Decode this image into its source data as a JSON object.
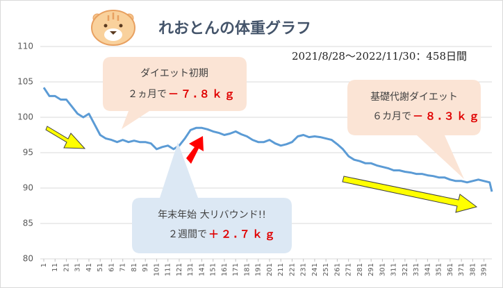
{
  "chart_data": {
    "type": "line",
    "title": "れおとんの体重グラフ",
    "subtitle": "2021/8/28～2022/11/30：458日間",
    "x": [
      1,
      6,
      11,
      16,
      21,
      26,
      31,
      36,
      41,
      46,
      51,
      56,
      61,
      66,
      71,
      76,
      81,
      86,
      91,
      96,
      101,
      106,
      111,
      116,
      121,
      126,
      131,
      136,
      141,
      146,
      151,
      156,
      161,
      166,
      171,
      176,
      181,
      186,
      191,
      196,
      201,
      206,
      211,
      216,
      221,
      226,
      231,
      236,
      241,
      246,
      251,
      256,
      261,
      266,
      271,
      276,
      281,
      286,
      291,
      296,
      301,
      306,
      311,
      316,
      321,
      326,
      331,
      336,
      341,
      346,
      351,
      356,
      361,
      366,
      371,
      376,
      381,
      386,
      391,
      396,
      398
    ],
    "series": [
      {
        "name": "体重",
        "color": "#5b9bd5",
        "values": [
          104.2,
          103,
          103,
          102.5,
          102.5,
          101.5,
          100.5,
          100,
          100.5,
          99,
          97.5,
          97,
          96.8,
          96.5,
          96.8,
          96.5,
          96.7,
          96.5,
          96.5,
          96.3,
          95.5,
          95.8,
          96,
          95.5,
          96,
          97,
          98.2,
          98.5,
          98.5,
          98.3,
          98,
          97.8,
          97.5,
          97.7,
          98,
          97.6,
          97.3,
          96.8,
          96.5,
          96.5,
          96.8,
          96.3,
          96,
          96.2,
          96.5,
          97.3,
          97.5,
          97.2,
          97.3,
          97.2,
          97,
          96.8,
          96.2,
          95.5,
          94.5,
          94,
          93.8,
          93.5,
          93.5,
          93.2,
          93,
          92.8,
          92.5,
          92.5,
          92.3,
          92.2,
          92,
          92,
          91.8,
          91.7,
          91.5,
          91.5,
          91.2,
          91,
          91,
          90.8,
          91,
          91.2,
          91,
          90.8,
          89.5
        ]
      }
    ],
    "xlim": [
      1,
      398
    ],
    "xticks": [
      1,
      11,
      21,
      31,
      41,
      51,
      61,
      71,
      81,
      91,
      101,
      111,
      121,
      131,
      141,
      151,
      161,
      171,
      181,
      191,
      201,
      211,
      221,
      231,
      241,
      251,
      261,
      271,
      281,
      291,
      301,
      311,
      321,
      331,
      341,
      351,
      361,
      371,
      381,
      391
    ],
    "ylim": [
      80,
      110
    ],
    "yticks": [
      80,
      85,
      90,
      95,
      100,
      105,
      110
    ],
    "grid": true,
    "annotations": [
      {
        "line1": "ダイエット初期",
        "line2": "２ヵ月で",
        "value_text": "－７.８ｋｇ"
      },
      {
        "line1": "基礎代謝ダイエット",
        "line2": "６カ月で",
        "value_text": "－８.３ｋｇ"
      },
      {
        "line1": "年末年始 大リバウンド!!",
        "line2": "２週間で",
        "value_text": "＋２.７ｋｇ"
      }
    ]
  }
}
